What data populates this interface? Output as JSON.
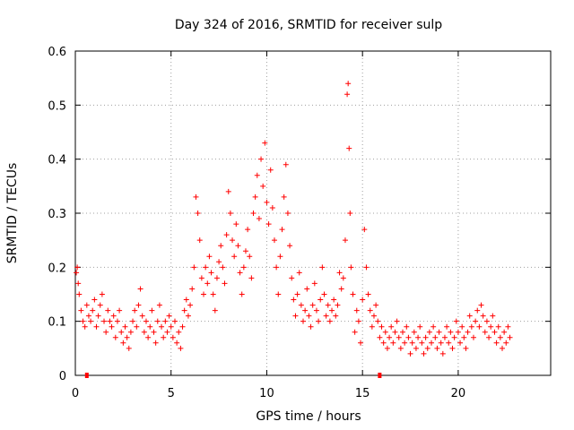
{
  "chart_data": {
    "type": "scatter",
    "title": "Day 324 of 2016, SRMTID for receiver sulp",
    "xlabel": "GPS time / hours",
    "ylabel": "SRMTID / TECUs",
    "xlim": [
      0,
      24.83
    ],
    "ylim": [
      0,
      0.6
    ],
    "x_ticks": [
      0,
      5,
      10,
      15,
      20
    ],
    "x_tick_labels": [
      "0",
      "5",
      "10",
      "15",
      "20"
    ],
    "y_ticks": [
      0,
      0.1,
      0.2,
      0.3,
      0.4,
      0.5,
      0.6
    ],
    "y_tick_labels": [
      "0",
      "0.1",
      "0.2",
      "0.3",
      "0.4",
      "0.5",
      "0.6"
    ],
    "grid": true,
    "series": [
      {
        "name": "SRMTID",
        "color": "#ff0000",
        "marker": "plus",
        "points": [
          [
            0.05,
            0.19
          ],
          [
            0.1,
            0.2
          ],
          [
            0.15,
            0.17
          ],
          [
            0.2,
            0.15
          ],
          [
            0.3,
            0.12
          ],
          [
            0.4,
            0.1
          ],
          [
            0.5,
            0.09
          ],
          [
            0.6,
            0.13
          ],
          [
            0.7,
            0.11
          ],
          [
            0.8,
            0.1
          ],
          [
            0.9,
            0.12
          ],
          [
            1.0,
            0.14
          ],
          [
            1.1,
            0.09
          ],
          [
            1.2,
            0.11
          ],
          [
            1.3,
            0.13
          ],
          [
            1.4,
            0.15
          ],
          [
            1.5,
            0.1
          ],
          [
            1.6,
            0.08
          ],
          [
            1.7,
            0.12
          ],
          [
            1.8,
            0.1
          ],
          [
            1.9,
            0.09
          ],
          [
            2.0,
            0.11
          ],
          [
            2.1,
            0.07
          ],
          [
            2.2,
            0.1
          ],
          [
            2.3,
            0.12
          ],
          [
            2.4,
            0.08
          ],
          [
            2.5,
            0.06
          ],
          [
            2.6,
            0.09
          ],
          [
            2.7,
            0.07
          ],
          [
            2.8,
            0.05
          ],
          [
            2.9,
            0.08
          ],
          [
            3.0,
            0.1
          ],
          [
            3.1,
            0.12
          ],
          [
            3.2,
            0.09
          ],
          [
            3.3,
            0.13
          ],
          [
            3.4,
            0.16
          ],
          [
            3.5,
            0.11
          ],
          [
            3.6,
            0.08
          ],
          [
            3.7,
            0.1
          ],
          [
            3.8,
            0.07
          ],
          [
            3.9,
            0.09
          ],
          [
            4.0,
            0.12
          ],
          [
            4.1,
            0.08
          ],
          [
            4.2,
            0.06
          ],
          [
            4.3,
            0.1
          ],
          [
            4.4,
            0.13
          ],
          [
            4.5,
            0.09
          ],
          [
            4.6,
            0.07
          ],
          [
            4.7,
            0.1
          ],
          [
            4.8,
            0.08
          ],
          [
            4.9,
            0.11
          ],
          [
            5.0,
            0.09
          ],
          [
            5.1,
            0.07
          ],
          [
            5.2,
            0.1
          ],
          [
            5.3,
            0.06
          ],
          [
            5.4,
            0.08
          ],
          [
            5.5,
            0.05
          ],
          [
            5.6,
            0.09
          ],
          [
            5.7,
            0.12
          ],
          [
            5.8,
            0.14
          ],
          [
            5.9,
            0.11
          ],
          [
            6.0,
            0.13
          ],
          [
            6.1,
            0.16
          ],
          [
            6.2,
            0.2
          ],
          [
            6.3,
            0.33
          ],
          [
            6.4,
            0.3
          ],
          [
            6.5,
            0.25
          ],
          [
            6.6,
            0.18
          ],
          [
            6.7,
            0.15
          ],
          [
            6.8,
            0.2
          ],
          [
            6.9,
            0.17
          ],
          [
            7.0,
            0.22
          ],
          [
            7.1,
            0.19
          ],
          [
            7.2,
            0.15
          ],
          [
            7.3,
            0.12
          ],
          [
            7.4,
            0.18
          ],
          [
            7.5,
            0.21
          ],
          [
            7.6,
            0.24
          ],
          [
            7.7,
            0.2
          ],
          [
            7.8,
            0.17
          ],
          [
            7.9,
            0.26
          ],
          [
            8.0,
            0.34
          ],
          [
            8.1,
            0.3
          ],
          [
            8.2,
            0.25
          ],
          [
            8.3,
            0.22
          ],
          [
            8.4,
            0.28
          ],
          [
            8.5,
            0.24
          ],
          [
            8.6,
            0.19
          ],
          [
            8.7,
            0.15
          ],
          [
            8.8,
            0.2
          ],
          [
            8.9,
            0.23
          ],
          [
            9.0,
            0.27
          ],
          [
            9.1,
            0.22
          ],
          [
            9.2,
            0.18
          ],
          [
            9.3,
            0.3
          ],
          [
            9.4,
            0.33
          ],
          [
            9.5,
            0.37
          ],
          [
            9.6,
            0.29
          ],
          [
            9.7,
            0.4
          ],
          [
            9.8,
            0.35
          ],
          [
            9.9,
            0.43
          ],
          [
            10.0,
            0.32
          ],
          [
            10.1,
            0.28
          ],
          [
            10.2,
            0.38
          ],
          [
            10.3,
            0.31
          ],
          [
            10.4,
            0.25
          ],
          [
            10.5,
            0.2
          ],
          [
            10.6,
            0.15
          ],
          [
            10.7,
            0.22
          ],
          [
            10.8,
            0.27
          ],
          [
            10.9,
            0.33
          ],
          [
            11.0,
            0.39
          ],
          [
            11.1,
            0.3
          ],
          [
            11.2,
            0.24
          ],
          [
            11.3,
            0.18
          ],
          [
            11.4,
            0.14
          ],
          [
            11.5,
            0.11
          ],
          [
            11.6,
            0.15
          ],
          [
            11.7,
            0.19
          ],
          [
            11.8,
            0.13
          ],
          [
            11.9,
            0.1
          ],
          [
            12.0,
            0.12
          ],
          [
            12.1,
            0.16
          ],
          [
            12.2,
            0.11
          ],
          [
            12.3,
            0.09
          ],
          [
            12.4,
            0.13
          ],
          [
            12.5,
            0.17
          ],
          [
            12.6,
            0.12
          ],
          [
            12.7,
            0.1
          ],
          [
            12.8,
            0.14
          ],
          [
            12.9,
            0.2
          ],
          [
            13.0,
            0.15
          ],
          [
            13.1,
            0.11
          ],
          [
            13.2,
            0.13
          ],
          [
            13.3,
            0.1
          ],
          [
            13.4,
            0.12
          ],
          [
            13.5,
            0.14
          ],
          [
            13.6,
            0.11
          ],
          [
            13.7,
            0.13
          ],
          [
            13.8,
            0.19
          ],
          [
            13.9,
            0.16
          ],
          [
            14.0,
            0.18
          ],
          [
            14.1,
            0.25
          ],
          [
            14.2,
            0.52
          ],
          [
            14.25,
            0.54
          ],
          [
            14.3,
            0.42
          ],
          [
            14.35,
            0.3
          ],
          [
            14.4,
            0.2
          ],
          [
            14.5,
            0.15
          ],
          [
            14.6,
            0.08
          ],
          [
            14.7,
            0.12
          ],
          [
            14.8,
            0.1
          ],
          [
            14.9,
            0.06
          ],
          [
            15.0,
            0.14
          ],
          [
            15.1,
            0.27
          ],
          [
            15.2,
            0.2
          ],
          [
            15.3,
            0.15
          ],
          [
            15.4,
            0.12
          ],
          [
            15.5,
            0.09
          ],
          [
            15.6,
            0.11
          ],
          [
            15.7,
            0.13
          ],
          [
            15.8,
            0.1
          ],
          [
            15.9,
            0.07
          ],
          [
            16.0,
            0.09
          ],
          [
            16.1,
            0.06
          ],
          [
            16.2,
            0.08
          ],
          [
            16.3,
            0.05
          ],
          [
            16.4,
            0.07
          ],
          [
            16.5,
            0.09
          ],
          [
            16.6,
            0.06
          ],
          [
            16.7,
            0.08
          ],
          [
            16.8,
            0.1
          ],
          [
            16.9,
            0.07
          ],
          [
            17.0,
            0.05
          ],
          [
            17.1,
            0.08
          ],
          [
            17.2,
            0.06
          ],
          [
            17.3,
            0.09
          ],
          [
            17.4,
            0.07
          ],
          [
            17.5,
            0.04
          ],
          [
            17.6,
            0.06
          ],
          [
            17.7,
            0.08
          ],
          [
            17.8,
            0.05
          ],
          [
            17.9,
            0.07
          ],
          [
            18.0,
            0.09
          ],
          [
            18.1,
            0.06
          ],
          [
            18.2,
            0.04
          ],
          [
            18.3,
            0.07
          ],
          [
            18.4,
            0.05
          ],
          [
            18.5,
            0.08
          ],
          [
            18.6,
            0.06
          ],
          [
            18.7,
            0.09
          ],
          [
            18.8,
            0.07
          ],
          [
            18.9,
            0.05
          ],
          [
            19.0,
            0.08
          ],
          [
            19.1,
            0.06
          ],
          [
            19.2,
            0.04
          ],
          [
            19.3,
            0.07
          ],
          [
            19.4,
            0.09
          ],
          [
            19.5,
            0.06
          ],
          [
            19.6,
            0.08
          ],
          [
            19.7,
            0.05
          ],
          [
            19.8,
            0.07
          ],
          [
            19.9,
            0.1
          ],
          [
            20.0,
            0.08
          ],
          [
            20.1,
            0.06
          ],
          [
            20.2,
            0.09
          ],
          [
            20.3,
            0.07
          ],
          [
            20.4,
            0.05
          ],
          [
            20.5,
            0.08
          ],
          [
            20.6,
            0.11
          ],
          [
            20.7,
            0.09
          ],
          [
            20.8,
            0.07
          ],
          [
            20.9,
            0.1
          ],
          [
            21.0,
            0.12
          ],
          [
            21.1,
            0.09
          ],
          [
            21.2,
            0.13
          ],
          [
            21.3,
            0.11
          ],
          [
            21.4,
            0.08
          ],
          [
            21.5,
            0.1
          ],
          [
            21.6,
            0.07
          ],
          [
            21.7,
            0.09
          ],
          [
            21.8,
            0.11
          ],
          [
            21.9,
            0.08
          ],
          [
            22.0,
            0.06
          ],
          [
            22.1,
            0.09
          ],
          [
            22.2,
            0.07
          ],
          [
            22.3,
            0.05
          ],
          [
            22.4,
            0.08
          ],
          [
            22.5,
            0.06
          ],
          [
            22.6,
            0.09
          ],
          [
            22.7,
            0.07
          ]
        ]
      }
    ],
    "gap_markers": [
      [
        0.6,
        0
      ],
      [
        15.9,
        0
      ]
    ]
  }
}
